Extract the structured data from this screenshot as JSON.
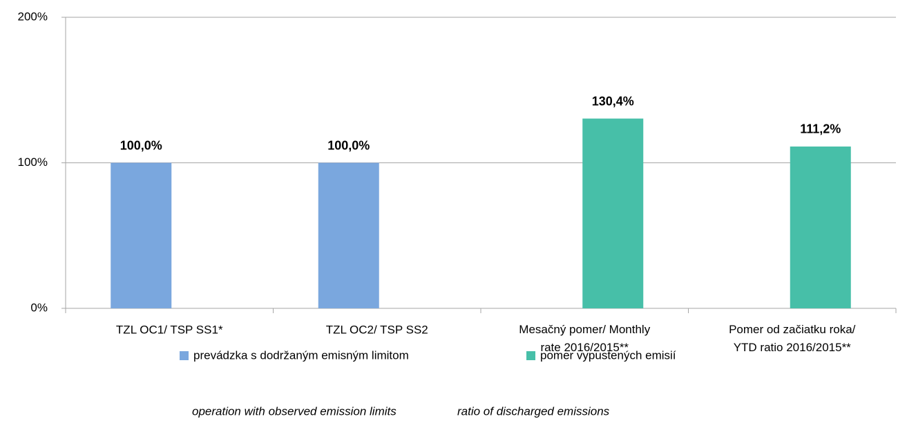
{
  "chart_data": {
    "type": "bar",
    "categories": [
      "TZL OC1/ TSP SS1*",
      "TZL OC2/ TSP SS2",
      "Mesačný pomer/ Monthly rate 2016/2015**",
      "Pomer od začiatku roka/ YTD ratio 2016/2015**"
    ],
    "series": [
      {
        "name": "prevádzka s dodržaným emisným limitom",
        "color": "#7aa7de",
        "values": [
          100,
          100,
          null,
          null
        ],
        "value_labels": [
          "100,0%",
          "100,0%",
          null,
          null
        ]
      },
      {
        "name": "pomer vypustených emisií",
        "color": "#47bfa8",
        "values": [
          null,
          null,
          130.4,
          111.2
        ],
        "value_labels": [
          null,
          null,
          "130,4%",
          "111,2%"
        ]
      }
    ],
    "annotations": [
      "operation with observed emission limits",
      "ratio of discharged emissions"
    ],
    "ylim": [
      0,
      200
    ],
    "yticks": [
      {
        "value": 0,
        "label": "0%"
      },
      {
        "value": 100,
        "label": "100%"
      },
      {
        "value": 200,
        "label": "200%"
      }
    ],
    "grid": true
  }
}
